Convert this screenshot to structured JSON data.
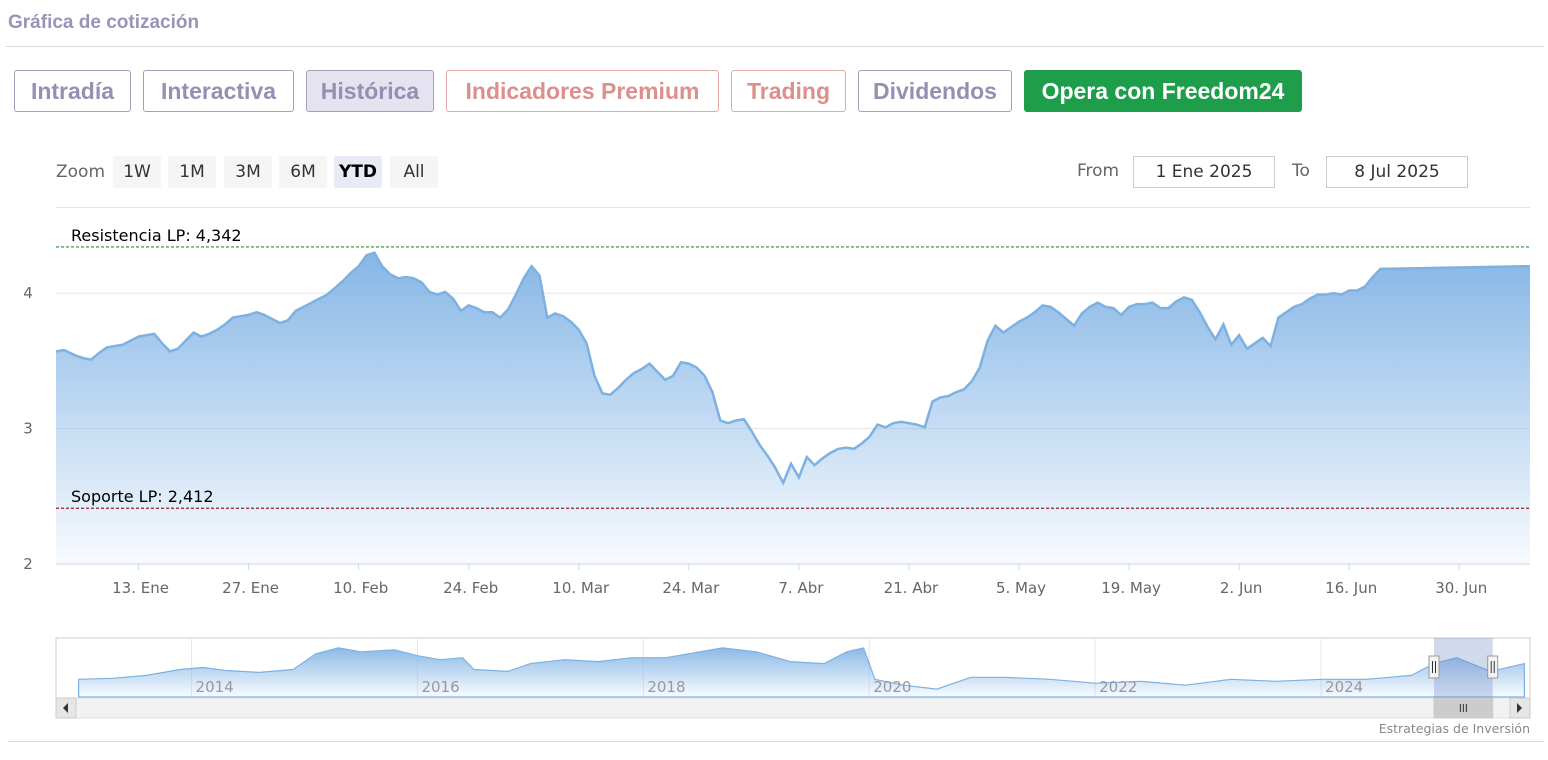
{
  "section_title": "Gráfica de cotización",
  "tabs": [
    {
      "label": "Intradía",
      "style": "normal"
    },
    {
      "label": "Interactiva",
      "style": "normal"
    },
    {
      "label": "Histórica",
      "style": "active"
    },
    {
      "label": "Indicadores Premium",
      "style": "premium"
    },
    {
      "label": "Trading",
      "style": "premium"
    },
    {
      "label": "Dividendos",
      "style": "normal"
    },
    {
      "label": "Opera con Freedom24",
      "style": "green"
    }
  ],
  "zoom": {
    "label": "Zoom",
    "buttons": [
      "1W",
      "1M",
      "3M",
      "6M",
      "YTD",
      "All"
    ],
    "selected": "YTD"
  },
  "range": {
    "from_label": "From",
    "from_value": "1 Ene 2025",
    "to_label": "To",
    "to_value": "8 Jul 2025"
  },
  "credits": "Estrategias de Inversión",
  "colors": {
    "line": "#7cb1e2",
    "area_top": "#89b9e7",
    "resistance": "#2e8b2e",
    "support": "#9b1c2c",
    "green_button": "#1e9e4a"
  },
  "chart_data": {
    "type": "area",
    "ylim": [
      2,
      4.6
    ],
    "yticks": [
      2,
      3,
      4
    ],
    "xticks": [
      {
        "label": "13. Ene",
        "day": 12
      },
      {
        "label": "27. Ene",
        "day": 26
      },
      {
        "label": "10. Feb",
        "day": 40
      },
      {
        "label": "24. Feb",
        "day": 54
      },
      {
        "label": "10. Mar",
        "day": 68
      },
      {
        "label": "24. Mar",
        "day": 82
      },
      {
        "label": "7. Abr",
        "day": 96
      },
      {
        "label": "21. Abr",
        "day": 110
      },
      {
        "label": "5. May",
        "day": 124
      },
      {
        "label": "19. May",
        "day": 138
      },
      {
        "label": "2. Jun",
        "day": 152
      },
      {
        "label": "16. Jun",
        "day": 166
      },
      {
        "label": "30. Jun",
        "day": 180
      }
    ],
    "xrange_days": [
      1.5,
      189
    ],
    "series": [
      {
        "values": [
          [
            1.5,
            3.57
          ],
          [
            2.5,
            3.58
          ],
          [
            4,
            3.54
          ],
          [
            5,
            3.52
          ],
          [
            6,
            3.51
          ],
          [
            7,
            3.56
          ],
          [
            8,
            3.6
          ],
          [
            9,
            3.61
          ],
          [
            10,
            3.62
          ],
          [
            11,
            3.65
          ],
          [
            12,
            3.68
          ],
          [
            13,
            3.69
          ],
          [
            14,
            3.7
          ],
          [
            15,
            3.63
          ],
          [
            16,
            3.57
          ],
          [
            17,
            3.59
          ],
          [
            18,
            3.65
          ],
          [
            19,
            3.71
          ],
          [
            20,
            3.68
          ],
          [
            21,
            3.7
          ],
          [
            22,
            3.73
          ],
          [
            23,
            3.77
          ],
          [
            24,
            3.82
          ],
          [
            25,
            3.83
          ],
          [
            26,
            3.84
          ],
          [
            27,
            3.86
          ],
          [
            28,
            3.84
          ],
          [
            29,
            3.81
          ],
          [
            30,
            3.78
          ],
          [
            31,
            3.8
          ],
          [
            32,
            3.87
          ],
          [
            33,
            3.9
          ],
          [
            34,
            3.93
          ],
          [
            35,
            3.96
          ],
          [
            36,
            3.99
          ],
          [
            37,
            4.04
          ],
          [
            38,
            4.09
          ],
          [
            39,
            4.15
          ],
          [
            40,
            4.2
          ],
          [
            41,
            4.28
          ],
          [
            42,
            4.3
          ],
          [
            43,
            4.2
          ],
          [
            44,
            4.14
          ],
          [
            45,
            4.11
          ],
          [
            46,
            4.12
          ],
          [
            47,
            4.11
          ],
          [
            48,
            4.08
          ],
          [
            49,
            4.01
          ],
          [
            50,
            3.99
          ],
          [
            51,
            4.01
          ],
          [
            52,
            3.96
          ],
          [
            53,
            3.87
          ],
          [
            54,
            3.91
          ],
          [
            55,
            3.89
          ],
          [
            56,
            3.86
          ],
          [
            57,
            3.86
          ],
          [
            58,
            3.82
          ],
          [
            59,
            3.88
          ],
          [
            60,
            3.99
          ],
          [
            61,
            4.11
          ],
          [
            62,
            4.2
          ],
          [
            63,
            4.13
          ],
          [
            64,
            3.82
          ],
          [
            65,
            3.85
          ],
          [
            66,
            3.83
          ],
          [
            67,
            3.79
          ],
          [
            68,
            3.73
          ],
          [
            69,
            3.63
          ],
          [
            70,
            3.39
          ],
          [
            71,
            3.26
          ],
          [
            72,
            3.25
          ],
          [
            73,
            3.3
          ],
          [
            74,
            3.36
          ],
          [
            75,
            3.41
          ],
          [
            76,
            3.44
          ],
          [
            77,
            3.48
          ],
          [
            78,
            3.42
          ],
          [
            79,
            3.36
          ],
          [
            80,
            3.39
          ],
          [
            81,
            3.49
          ],
          [
            82,
            3.48
          ],
          [
            83,
            3.45
          ],
          [
            84,
            3.39
          ],
          [
            85,
            3.27
          ],
          [
            86,
            3.06
          ],
          [
            87,
            3.04
          ],
          [
            88,
            3.06
          ],
          [
            89,
            3.07
          ],
          [
            90,
            2.98
          ],
          [
            91,
            2.88
          ],
          [
            92,
            2.8
          ],
          [
            93,
            2.71
          ],
          [
            94,
            2.6
          ],
          [
            95,
            2.74
          ],
          [
            96,
            2.64
          ],
          [
            97,
            2.79
          ],
          [
            98,
            2.73
          ],
          [
            99,
            2.78
          ],
          [
            100,
            2.82
          ],
          [
            101,
            2.85
          ],
          [
            102,
            2.86
          ],
          [
            103,
            2.85
          ],
          [
            104,
            2.89
          ],
          [
            105,
            2.94
          ],
          [
            106,
            3.03
          ],
          [
            107,
            3.01
          ],
          [
            108,
            3.04
          ],
          [
            109,
            3.05
          ],
          [
            110,
            3.04
          ],
          [
            111,
            3.03
          ],
          [
            112,
            3.01
          ],
          [
            113,
            3.2
          ],
          [
            114,
            3.23
          ],
          [
            115,
            3.24
          ],
          [
            116,
            3.27
          ],
          [
            117,
            3.29
          ],
          [
            118,
            3.35
          ],
          [
            119,
            3.45
          ],
          [
            120,
            3.65
          ],
          [
            121,
            3.76
          ],
          [
            122,
            3.71
          ],
          [
            123,
            3.75
          ],
          [
            124,
            3.79
          ],
          [
            125,
            3.82
          ],
          [
            126,
            3.86
          ],
          [
            127,
            3.91
          ],
          [
            128,
            3.9
          ],
          [
            129,
            3.86
          ],
          [
            130,
            3.81
          ],
          [
            131,
            3.76
          ],
          [
            132,
            3.85
          ],
          [
            133,
            3.9
          ],
          [
            134,
            3.93
          ],
          [
            135,
            3.9
          ],
          [
            136,
            3.89
          ],
          [
            137,
            3.84
          ],
          [
            138,
            3.9
          ],
          [
            139,
            3.92
          ],
          [
            140,
            3.92
          ],
          [
            141,
            3.93
          ],
          [
            142,
            3.89
          ],
          [
            143,
            3.89
          ],
          [
            144,
            3.94
          ],
          [
            145,
            3.97
          ],
          [
            146,
            3.95
          ],
          [
            147,
            3.86
          ],
          [
            148,
            3.75
          ],
          [
            149,
            3.66
          ],
          [
            150,
            3.77
          ],
          [
            151,
            3.62
          ],
          [
            152,
            3.69
          ],
          [
            153,
            3.59
          ],
          [
            154,
            3.63
          ],
          [
            155,
            3.67
          ],
          [
            156,
            3.61
          ],
          [
            157,
            3.82
          ],
          [
            158,
            3.86
          ],
          [
            159,
            3.9
          ],
          [
            160,
            3.92
          ],
          [
            161,
            3.96
          ],
          [
            162,
            3.99
          ],
          [
            163,
            3.99
          ],
          [
            164,
            4.0
          ],
          [
            165,
            3.99
          ],
          [
            166,
            4.02
          ],
          [
            167,
            4.02
          ],
          [
            168,
            4.05
          ],
          [
            169,
            4.12
          ],
          [
            170,
            4.18
          ],
          [
            189,
            4.18
          ]
        ],
        "values_note": ""
      }
    ],
    "annotations": [
      {
        "label": "Resistencia LP: 4,342",
        "value": 4.342,
        "kind": "resistance"
      },
      {
        "label": "Soporte LP: 2,412",
        "value": 2.412,
        "kind": "support"
      }
    ],
    "navigator": {
      "year_labels": [
        "2014",
        "2016",
        "2018",
        "2020",
        "2022",
        "2024"
      ],
      "values": [
        [
          2013.0,
          3.2
        ],
        [
          2013.3,
          3.25
        ],
        [
          2013.6,
          3.4
        ],
        [
          2013.9,
          3.7
        ],
        [
          2014.1,
          3.8
        ],
        [
          2014.3,
          3.65
        ],
        [
          2014.6,
          3.55
        ],
        [
          2014.9,
          3.7
        ],
        [
          2015.1,
          4.5
        ],
        [
          2015.3,
          4.8
        ],
        [
          2015.5,
          4.6
        ],
        [
          2015.8,
          4.7
        ],
        [
          2016.0,
          4.4
        ],
        [
          2016.2,
          4.2
        ],
        [
          2016.4,
          4.3
        ],
        [
          2016.5,
          3.7
        ],
        [
          2016.8,
          3.6
        ],
        [
          2017.0,
          4.0
        ],
        [
          2017.3,
          4.2
        ],
        [
          2017.6,
          4.1
        ],
        [
          2017.9,
          4.3
        ],
        [
          2018.2,
          4.3
        ],
        [
          2018.5,
          4.6
        ],
        [
          2018.7,
          4.8
        ],
        [
          2019.0,
          4.6
        ],
        [
          2019.3,
          4.1
        ],
        [
          2019.6,
          4.0
        ],
        [
          2019.8,
          4.6
        ],
        [
          2019.95,
          4.8
        ],
        [
          2020.05,
          3.2
        ],
        [
          2020.3,
          2.9
        ],
        [
          2020.6,
          2.7
        ],
        [
          2020.9,
          3.3
        ],
        [
          2021.2,
          3.3
        ],
        [
          2021.6,
          3.2
        ],
        [
          2022.0,
          3.0
        ],
        [
          2022.4,
          3.1
        ],
        [
          2022.8,
          2.9
        ],
        [
          2023.2,
          3.2
        ],
        [
          2023.6,
          3.1
        ],
        [
          2024.0,
          3.2
        ],
        [
          2024.4,
          3.2
        ],
        [
          2024.8,
          3.4
        ],
        [
          2025.0,
          4.0
        ],
        [
          2025.2,
          4.3
        ],
        [
          2025.5,
          3.6
        ],
        [
          2025.8,
          4.0
        ]
      ],
      "xrange": [
        2012.8,
        2025.85
      ],
      "handles": [
        2025.0,
        2025.52
      ]
    }
  }
}
